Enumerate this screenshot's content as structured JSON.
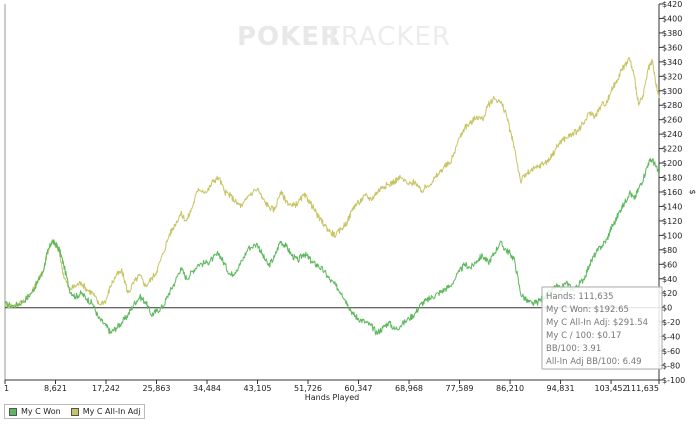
{
  "watermark": {
    "part1": "POKER",
    "part2": "TRACKER"
  },
  "chart_data": {
    "type": "line",
    "title": "",
    "xlabel": "Hands Played",
    "ylabel": "$",
    "xlim": [
      1,
      111635
    ],
    "ylim": [
      -100,
      420
    ],
    "x_ticks": [
      1,
      8621,
      17242,
      25863,
      34484,
      43105,
      51726,
      60347,
      68968,
      77589,
      86210,
      94831,
      103452,
      111635
    ],
    "x_tick_labels": [
      "1",
      "8,621",
      "17,242",
      "25,863",
      "34,484",
      "43,105",
      "51,726",
      "60,347",
      "68,968",
      "77,589",
      "86,210",
      "94,831",
      "103,452",
      "111,635"
    ],
    "y_ticks": [
      -100,
      -80,
      -60,
      -40,
      -20,
      0,
      20,
      40,
      60,
      80,
      100,
      120,
      140,
      160,
      180,
      200,
      220,
      240,
      260,
      280,
      300,
      320,
      340,
      360,
      380,
      400,
      420
    ],
    "y_tick_labels": [
      "$-100",
      "$-80",
      "$-60",
      "$-40",
      "$-20",
      "$0",
      "$20",
      "$40",
      "$60",
      "$80",
      "$100",
      "$120",
      "$140",
      "$160",
      "$180",
      "$200",
      "$220",
      "$240",
      "$260",
      "$280",
      "$300",
      "$320",
      "$340",
      "$360",
      "$380",
      "$400",
      "$420"
    ],
    "legend_position": "bottom-left",
    "grid": false,
    "series": [
      {
        "name": "My C Won",
        "color": "#5cb85c",
        "x": [
          1,
          1500,
          3000,
          4500,
          5500,
          6500,
          7200,
          8000,
          8621,
          9300,
          10000,
          11000,
          12000,
          13000,
          14000,
          15000,
          16000,
          17242,
          18000,
          19000,
          20000,
          21000,
          22000,
          23000,
          24000,
          25000,
          25863,
          27000,
          28000,
          29000,
          30000,
          31000,
          32000,
          33000,
          34484,
          35500,
          36500,
          37500,
          38500,
          39500,
          40500,
          41500,
          43105,
          44000,
          45000,
          46000,
          47000,
          48000,
          49000,
          50000,
          51000,
          51726,
          52500,
          53500,
          54500,
          55500,
          56500,
          57500,
          58500,
          59500,
          60347,
          61500,
          62500,
          63500,
          64500,
          65500,
          66500,
          67500,
          68968,
          70000,
          71000,
          72000,
          73000,
          74000,
          75000,
          76000,
          77589,
          78500,
          79500,
          80500,
          81500,
          82500,
          83500,
          84500,
          85500,
          86210,
          87000,
          88000,
          89000,
          90000,
          91000,
          92000,
          93000,
          94000,
          94831,
          95800,
          96800,
          97800,
          98800,
          99800,
          100800,
          101800,
          102800,
          103452,
          104200,
          105000,
          105800,
          106600,
          107400,
          108200,
          109000,
          109800,
          110500,
          111100,
          111635
        ],
        "y": [
          5,
          2,
          8,
          20,
          35,
          50,
          75,
          92,
          88,
          80,
          60,
          25,
          15,
          20,
          12,
          5,
          -15,
          -25,
          -35,
          -28,
          -20,
          -10,
          5,
          15,
          8,
          -10,
          -5,
          2,
          20,
          35,
          55,
          40,
          50,
          60,
          62,
          68,
          75,
          60,
          45,
          52,
          65,
          82,
          88,
          72,
          58,
          70,
          92,
          85,
          72,
          65,
          75,
          70,
          62,
          58,
          50,
          38,
          30,
          20,
          5,
          -10,
          -15,
          -20,
          -25,
          -35,
          -28,
          -20,
          -30,
          -25,
          -15,
          -8,
          5,
          10,
          15,
          20,
          25,
          30,
          50,
          60,
          55,
          65,
          72,
          62,
          75,
          90,
          80,
          75,
          65,
          20,
          10,
          5,
          8,
          15,
          20,
          30,
          25,
          35,
          25,
          30,
          40,
          60,
          75,
          85,
          95,
          110,
          120,
          135,
          145,
          160,
          150,
          165,
          180,
          200,
          205,
          195,
          185
        ],
        "stats": {
          "hands_label": "Hands: 111,635",
          "won_label": "My C Won: $192.65",
          "allin_label": "My C All-In Adj: $291.54",
          "per100_label": "My C / 100: $0.17",
          "bb100_label": "BB/100: 3.91",
          "allin_bb100_label": "All-In Adj BB/100: 6.49"
        }
      },
      {
        "name": "My C All-In Adj",
        "color": "#c8c464",
        "x": [
          1,
          1500,
          3000,
          4500,
          5500,
          6500,
          7200,
          8000,
          8621,
          9300,
          10000,
          11000,
          12000,
          13000,
          14000,
          15000,
          16000,
          17242,
          18000,
          19000,
          20000,
          21000,
          22000,
          23000,
          24000,
          25000,
          25863,
          27000,
          28000,
          29000,
          30000,
          31000,
          32000,
          33000,
          34484,
          35500,
          36500,
          37500,
          38500,
          39500,
          40500,
          41500,
          43105,
          44000,
          45000,
          46000,
          47000,
          48000,
          49000,
          50000,
          51000,
          51726,
          52500,
          53500,
          54500,
          55500,
          56500,
          57500,
          58500,
          59500,
          60347,
          61500,
          62500,
          63500,
          64500,
          65500,
          66500,
          67500,
          68968,
          70000,
          71000,
          72000,
          73000,
          74000,
          75000,
          76000,
          77589,
          78500,
          79500,
          80500,
          81500,
          82500,
          83500,
          84500,
          85500,
          86210,
          87000,
          88000,
          89000,
          90000,
          91000,
          92000,
          93000,
          94000,
          94831,
          95800,
          96800,
          97800,
          98800,
          99800,
          100800,
          101800,
          102800,
          103452,
          104200,
          105000,
          105800,
          106600,
          107400,
          108200,
          109000,
          109800,
          110500,
          111100,
          111635
        ],
        "y": [
          5,
          2,
          8,
          20,
          35,
          50,
          75,
          92,
          88,
          75,
          45,
          25,
          30,
          35,
          25,
          20,
          5,
          10,
          30,
          45,
          50,
          20,
          35,
          45,
          30,
          40,
          50,
          75,
          100,
          115,
          130,
          120,
          140,
          165,
          160,
          175,
          180,
          160,
          155,
          145,
          140,
          155,
          165,
          150,
          140,
          135,
          160,
          148,
          140,
          145,
          155,
          150,
          140,
          125,
          115,
          105,
          100,
          110,
          120,
          140,
          145,
          155,
          150,
          160,
          168,
          170,
          175,
          180,
          170,
          175,
          160,
          168,
          175,
          185,
          195,
          200,
          235,
          250,
          255,
          265,
          260,
          280,
          290,
          285,
          270,
          245,
          220,
          175,
          185,
          190,
          195,
          200,
          205,
          220,
          230,
          235,
          240,
          245,
          255,
          270,
          265,
          280,
          285,
          300,
          310,
          325,
          335,
          345,
          320,
          280,
          295,
          330,
          340,
          310,
          290
        ]
      }
    ]
  },
  "legend": {
    "items": [
      {
        "label": "My C Won",
        "color": "#5cb85c"
      },
      {
        "label": "My C All-In Adj",
        "color": "#c8c464"
      }
    ]
  }
}
